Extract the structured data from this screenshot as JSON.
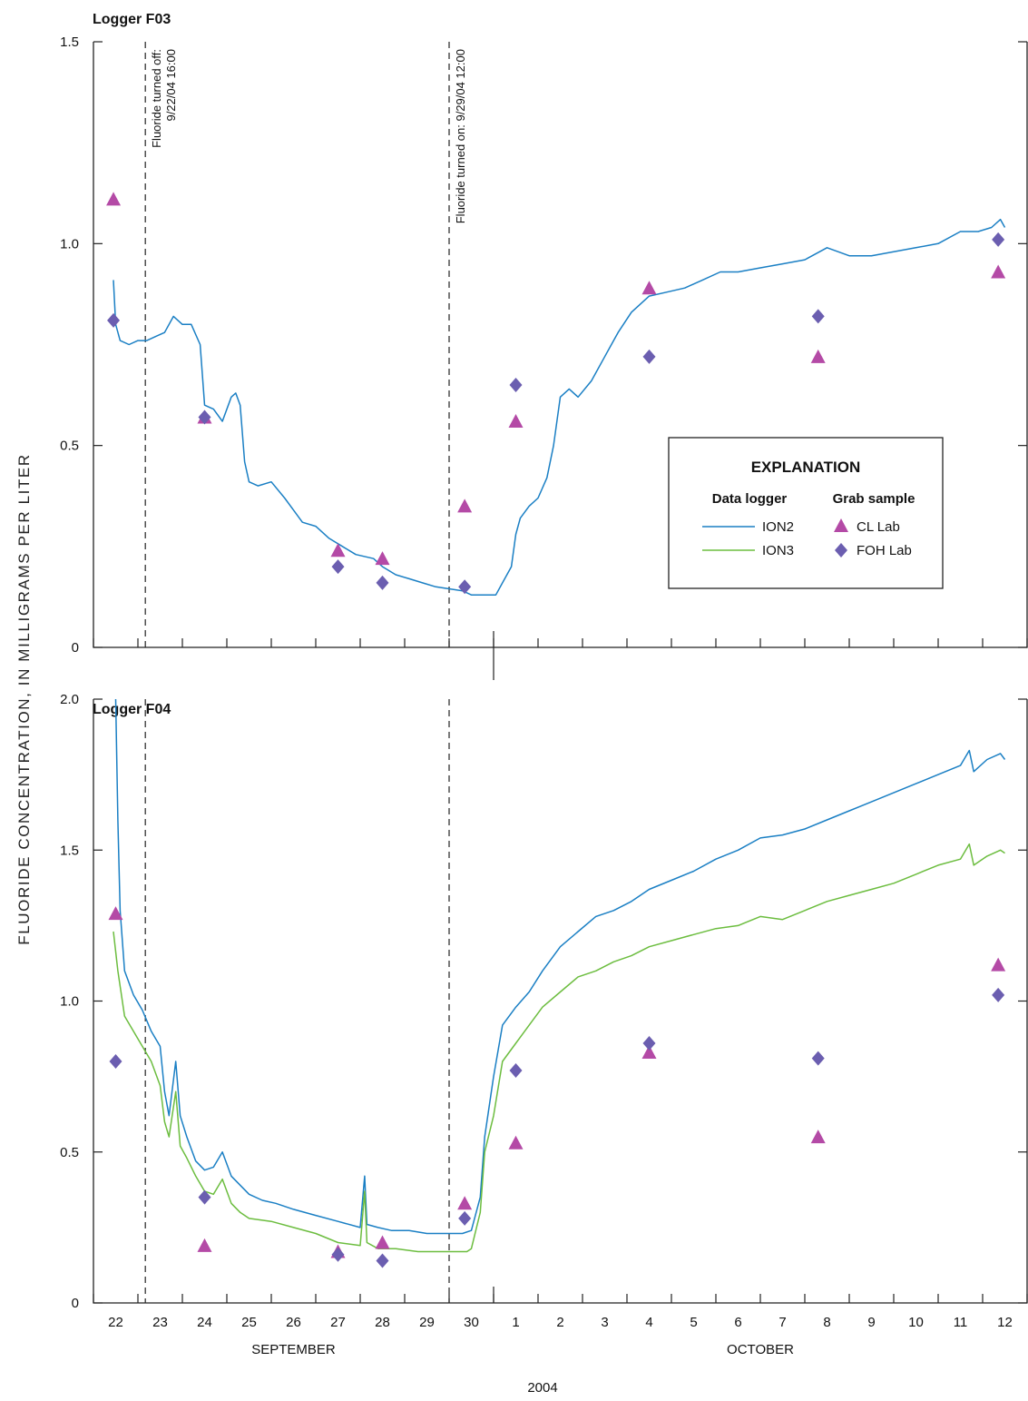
{
  "figure": {
    "y_axis_title": "FLUORIDE CONCENTRATION, IN MILLIGRAMS PER LITER",
    "year_label": "2004",
    "months": [
      {
        "label": "SEPTEMBER",
        "from_day": 22,
        "to_day": 30
      },
      {
        "label": "OCTOBER",
        "from_day": 1,
        "to_day": 12
      }
    ],
    "x_tick_labels": [
      "22",
      "23",
      "24",
      "25",
      "26",
      "27",
      "28",
      "29",
      "30",
      "1",
      "2",
      "3",
      "4",
      "5",
      "6",
      "7",
      "8",
      "9",
      "10",
      "11",
      "12"
    ],
    "annotations": [
      {
        "line1": "Fluoride turned off:",
        "line2": "9/22/04 16:00",
        "x": 0.667
      },
      {
        "line1": "Fluoride turned on: 9/29/04 12:00",
        "line2": "",
        "x": 7.5
      }
    ]
  },
  "legend": {
    "title": "EXPLANATION",
    "logger_heading": "Data logger",
    "grab_heading": "Grab sample",
    "logger_items": [
      {
        "label": "ION2",
        "color": "#1a7fc4"
      },
      {
        "label": "ION3",
        "color": "#6cbd3f"
      }
    ],
    "grab_items": [
      {
        "label": "CL Lab",
        "color": "#b44aa6",
        "shape": "triangle"
      },
      {
        "label": "FOH Lab",
        "color": "#6b5eb0",
        "shape": "diamond"
      }
    ]
  },
  "chart_data": [
    {
      "type": "line",
      "title": "Logger F03",
      "xlabel": "",
      "ylabel": "FLUORIDE CONCENTRATION, IN MILLIGRAMS PER LITER",
      "x_note": "x in days after Sept 22, 2004 00:00 (0 = Sept 22, 8 = Sept 30, 9 = Oct 1, 20 = Oct 12)",
      "xlim": [
        -0.5,
        20.5
      ],
      "ylim": [
        0,
        1.5
      ],
      "yticks": [
        0,
        0.5,
        1.0,
        1.5
      ],
      "ytick_labels": [
        "0",
        "0.5",
        "1.0",
        "1.5"
      ],
      "series": [
        {
          "name": "ION2",
          "color": "#1a7fc4",
          "points": [
            [
              -0.05,
              0.91
            ],
            [
              0.0,
              0.8
            ],
            [
              0.1,
              0.76
            ],
            [
              0.3,
              0.75
            ],
            [
              0.5,
              0.76
            ],
            [
              0.7,
              0.76
            ],
            [
              0.9,
              0.77
            ],
            [
              1.1,
              0.78
            ],
            [
              1.3,
              0.82
            ],
            [
              1.5,
              0.8
            ],
            [
              1.7,
              0.8
            ],
            [
              1.9,
              0.75
            ],
            [
              2.0,
              0.6
            ],
            [
              2.2,
              0.59
            ],
            [
              2.4,
              0.56
            ],
            [
              2.6,
              0.62
            ],
            [
              2.7,
              0.63
            ],
            [
              2.8,
              0.6
            ],
            [
              2.9,
              0.46
            ],
            [
              3.0,
              0.41
            ],
            [
              3.2,
              0.4
            ],
            [
              3.5,
              0.41
            ],
            [
              3.8,
              0.37
            ],
            [
              4.0,
              0.34
            ],
            [
              4.2,
              0.31
            ],
            [
              4.5,
              0.3
            ],
            [
              4.8,
              0.27
            ],
            [
              5.1,
              0.25
            ],
            [
              5.4,
              0.23
            ],
            [
              5.8,
              0.22
            ],
            [
              6.0,
              0.2
            ],
            [
              6.3,
              0.18
            ],
            [
              6.6,
              0.17
            ],
            [
              6.9,
              0.16
            ],
            [
              7.2,
              0.15
            ],
            [
              7.5,
              0.145
            ],
            [
              7.8,
              0.14
            ],
            [
              8.0,
              0.13
            ],
            [
              8.3,
              0.13
            ],
            [
              8.55,
              0.13
            ],
            [
              8.7,
              0.16
            ],
            [
              8.9,
              0.2
            ],
            [
              9.0,
              0.28
            ],
            [
              9.1,
              0.32
            ],
            [
              9.3,
              0.35
            ],
            [
              9.5,
              0.37
            ],
            [
              9.7,
              0.42
            ],
            [
              9.85,
              0.5
            ],
            [
              10.0,
              0.62
            ],
            [
              10.2,
              0.64
            ],
            [
              10.4,
              0.62
            ],
            [
              10.7,
              0.66
            ],
            [
              11.0,
              0.72
            ],
            [
              11.3,
              0.78
            ],
            [
              11.6,
              0.83
            ],
            [
              12.0,
              0.87
            ],
            [
              12.4,
              0.88
            ],
            [
              12.8,
              0.89
            ],
            [
              13.2,
              0.91
            ],
            [
              13.6,
              0.93
            ],
            [
              14.0,
              0.93
            ],
            [
              14.5,
              0.94
            ],
            [
              15.0,
              0.95
            ],
            [
              15.5,
              0.96
            ],
            [
              16.0,
              0.99
            ],
            [
              16.5,
              0.97
            ],
            [
              17.0,
              0.97
            ],
            [
              17.5,
              0.98
            ],
            [
              18.0,
              0.99
            ],
            [
              18.5,
              1.0
            ],
            [
              19.0,
              1.03
            ],
            [
              19.4,
              1.03
            ],
            [
              19.7,
              1.04
            ],
            [
              19.9,
              1.06
            ],
            [
              20.0,
              1.04
            ]
          ]
        }
      ],
      "grab_samples": [
        {
          "name": "CL Lab",
          "points": [
            [
              -0.05,
              1.11
            ],
            [
              2.0,
              0.57
            ],
            [
              5.0,
              0.24
            ],
            [
              6.0,
              0.22
            ],
            [
              7.85,
              0.35
            ],
            [
              9.0,
              0.56
            ],
            [
              12.0,
              0.89
            ],
            [
              15.8,
              0.72
            ],
            [
              19.85,
              0.93
            ]
          ]
        },
        {
          "name": "FOH Lab",
          "points": [
            [
              -0.05,
              0.81
            ],
            [
              2.0,
              0.57
            ],
            [
              5.0,
              0.2
            ],
            [
              6.0,
              0.16
            ],
            [
              7.85,
              0.15
            ],
            [
              9.0,
              0.65
            ],
            [
              12.0,
              0.72
            ],
            [
              15.8,
              0.82
            ],
            [
              19.85,
              1.01
            ]
          ]
        }
      ]
    },
    {
      "type": "line",
      "title": "Logger F04",
      "xlabel": "",
      "ylabel": "FLUORIDE CONCENTRATION, IN MILLIGRAMS PER LITER",
      "x_note": "x in days after Sept 22, 2004 00:00 (0 = Sept 22, 8 = Sept 30, 9 = Oct 1, 20 = Oct 12)",
      "xlim": [
        -0.5,
        20.5
      ],
      "ylim": [
        0,
        2.0
      ],
      "yticks": [
        0,
        0.5,
        1.0,
        1.5,
        2.0
      ],
      "ytick_labels": [
        "0",
        "0.5",
        "1.0",
        "1.5",
        "2.0"
      ],
      "series": [
        {
          "name": "ION2",
          "color": "#1a7fc4",
          "points": [
            [
              0.0,
              2.0
            ],
            [
              0.05,
              1.6
            ],
            [
              0.1,
              1.3
            ],
            [
              0.2,
              1.1
            ],
            [
              0.4,
              1.02
            ],
            [
              0.6,
              0.97
            ],
            [
              0.8,
              0.9
            ],
            [
              1.0,
              0.85
            ],
            [
              1.1,
              0.7
            ],
            [
              1.2,
              0.62
            ],
            [
              1.35,
              0.8
            ],
            [
              1.45,
              0.62
            ],
            [
              1.6,
              0.55
            ],
            [
              1.8,
              0.47
            ],
            [
              2.0,
              0.44
            ],
            [
              2.2,
              0.45
            ],
            [
              2.4,
              0.5
            ],
            [
              2.6,
              0.42
            ],
            [
              2.8,
              0.39
            ],
            [
              3.0,
              0.36
            ],
            [
              3.3,
              0.34
            ],
            [
              3.6,
              0.33
            ],
            [
              4.0,
              0.31
            ],
            [
              4.5,
              0.29
            ],
            [
              5.0,
              0.27
            ],
            [
              5.5,
              0.25
            ],
            [
              5.6,
              0.42
            ],
            [
              5.65,
              0.26
            ],
            [
              5.9,
              0.25
            ],
            [
              6.2,
              0.24
            ],
            [
              6.6,
              0.24
            ],
            [
              7.0,
              0.23
            ],
            [
              7.4,
              0.23
            ],
            [
              7.8,
              0.23
            ],
            [
              8.0,
              0.24
            ],
            [
              8.2,
              0.35
            ],
            [
              8.3,
              0.55
            ],
            [
              8.5,
              0.75
            ],
            [
              8.7,
              0.92
            ],
            [
              9.0,
              0.98
            ],
            [
              9.3,
              1.03
            ],
            [
              9.6,
              1.1
            ],
            [
              10.0,
              1.18
            ],
            [
              10.4,
              1.23
            ],
            [
              10.8,
              1.28
            ],
            [
              11.2,
              1.3
            ],
            [
              11.6,
              1.33
            ],
            [
              12.0,
              1.37
            ],
            [
              12.5,
              1.4
            ],
            [
              13.0,
              1.43
            ],
            [
              13.5,
              1.47
            ],
            [
              14.0,
              1.5
            ],
            [
              14.5,
              1.54
            ],
            [
              15.0,
              1.55
            ],
            [
              15.5,
              1.57
            ],
            [
              16.0,
              1.6
            ],
            [
              16.5,
              1.63
            ],
            [
              17.0,
              1.66
            ],
            [
              17.5,
              1.69
            ],
            [
              18.0,
              1.72
            ],
            [
              18.5,
              1.75
            ],
            [
              19.0,
              1.78
            ],
            [
              19.2,
              1.83
            ],
            [
              19.3,
              1.76
            ],
            [
              19.6,
              1.8
            ],
            [
              19.9,
              1.82
            ],
            [
              20.0,
              1.8
            ]
          ]
        },
        {
          "name": "ION3",
          "color": "#6cbd3f",
          "points": [
            [
              -0.05,
              1.23
            ],
            [
              0.05,
              1.1
            ],
            [
              0.2,
              0.95
            ],
            [
              0.4,
              0.9
            ],
            [
              0.6,
              0.85
            ],
            [
              0.8,
              0.8
            ],
            [
              1.0,
              0.72
            ],
            [
              1.1,
              0.6
            ],
            [
              1.2,
              0.55
            ],
            [
              1.35,
              0.7
            ],
            [
              1.45,
              0.52
            ],
            [
              1.6,
              0.48
            ],
            [
              1.8,
              0.42
            ],
            [
              2.0,
              0.37
            ],
            [
              2.2,
              0.36
            ],
            [
              2.4,
              0.41
            ],
            [
              2.6,
              0.33
            ],
            [
              2.8,
              0.3
            ],
            [
              3.0,
              0.28
            ],
            [
              3.5,
              0.27
            ],
            [
              4.0,
              0.25
            ],
            [
              4.5,
              0.23
            ],
            [
              5.0,
              0.2
            ],
            [
              5.5,
              0.19
            ],
            [
              5.6,
              0.37
            ],
            [
              5.65,
              0.2
            ],
            [
              5.9,
              0.18
            ],
            [
              6.3,
              0.18
            ],
            [
              6.8,
              0.17
            ],
            [
              7.2,
              0.17
            ],
            [
              7.6,
              0.17
            ],
            [
              7.9,
              0.17
            ],
            [
              8.0,
              0.18
            ],
            [
              8.2,
              0.3
            ],
            [
              8.3,
              0.5
            ],
            [
              8.5,
              0.62
            ],
            [
              8.7,
              0.8
            ],
            [
              9.0,
              0.86
            ],
            [
              9.3,
              0.92
            ],
            [
              9.6,
              0.98
            ],
            [
              10.0,
              1.03
            ],
            [
              10.4,
              1.08
            ],
            [
              10.8,
              1.1
            ],
            [
              11.2,
              1.13
            ],
            [
              11.6,
              1.15
            ],
            [
              12.0,
              1.18
            ],
            [
              12.5,
              1.2
            ],
            [
              13.0,
              1.22
            ],
            [
              13.5,
              1.24
            ],
            [
              14.0,
              1.25
            ],
            [
              14.5,
              1.28
            ],
            [
              15.0,
              1.27
            ],
            [
              15.5,
              1.3
            ],
            [
              16.0,
              1.33
            ],
            [
              16.5,
              1.35
            ],
            [
              17.0,
              1.37
            ],
            [
              17.5,
              1.39
            ],
            [
              18.0,
              1.42
            ],
            [
              18.5,
              1.45
            ],
            [
              19.0,
              1.47
            ],
            [
              19.2,
              1.52
            ],
            [
              19.3,
              1.45
            ],
            [
              19.6,
              1.48
            ],
            [
              19.9,
              1.5
            ],
            [
              20.0,
              1.49
            ]
          ]
        }
      ],
      "grab_samples": [
        {
          "name": "CL Lab",
          "points": [
            [
              0.0,
              1.29
            ],
            [
              2.0,
              0.19
            ],
            [
              5.0,
              0.17
            ],
            [
              6.0,
              0.2
            ],
            [
              7.85,
              0.33
            ],
            [
              9.0,
              0.53
            ],
            [
              12.0,
              0.83
            ],
            [
              15.8,
              0.55
            ],
            [
              19.85,
              1.12
            ]
          ]
        },
        {
          "name": "FOH Lab",
          "points": [
            [
              0.0,
              0.8
            ],
            [
              2.0,
              0.35
            ],
            [
              5.0,
              0.16
            ],
            [
              6.0,
              0.14
            ],
            [
              7.85,
              0.28
            ],
            [
              9.0,
              0.77
            ],
            [
              12.0,
              0.86
            ],
            [
              15.8,
              0.81
            ],
            [
              19.85,
              1.02
            ]
          ]
        }
      ]
    }
  ]
}
